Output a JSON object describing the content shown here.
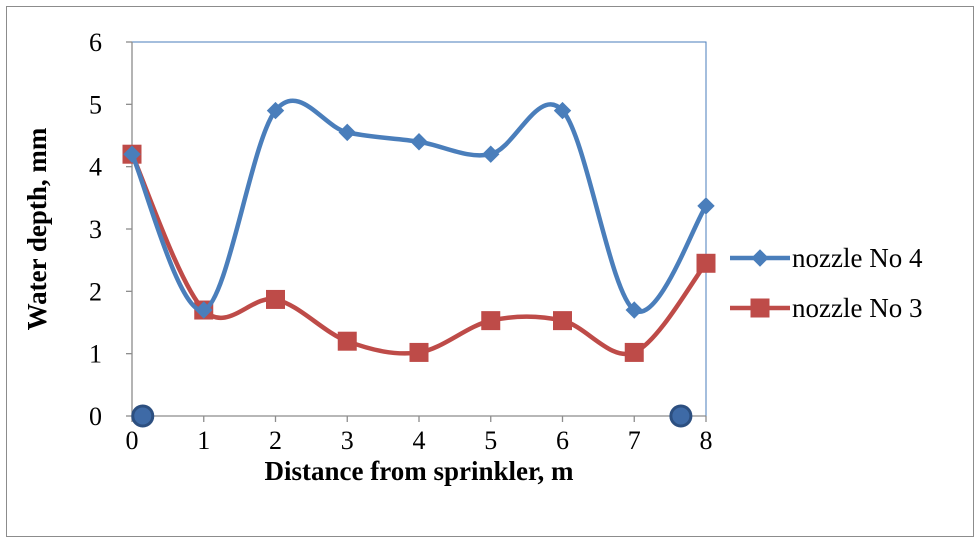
{
  "chart_data": {
    "type": "line",
    "title": "",
    "xlabel": "Distance from sprinkler, m",
    "ylabel": "Water depth, mm",
    "x": [
      0,
      1,
      2,
      3,
      4,
      5,
      6,
      7,
      8
    ],
    "xlim": [
      0,
      8
    ],
    "ylim": [
      0,
      6
    ],
    "x_ticks": [
      "0",
      "1",
      "2",
      "3",
      "4",
      "5",
      "6",
      "7",
      "8"
    ],
    "y_ticks": [
      "0",
      "1",
      "2",
      "3",
      "4",
      "5",
      "6"
    ],
    "smooth": true,
    "grid": false,
    "legend_position": "right",
    "series": [
      {
        "name": "nozzle No 4",
        "marker": "diamond",
        "color": "#4a7ebb",
        "values": [
          4.2,
          1.7,
          4.9,
          4.55,
          4.4,
          4.2,
          4.9,
          1.7,
          3.37
        ]
      },
      {
        "name": "nozzle No 3",
        "marker": "square",
        "color": "#be4b48",
        "values": [
          4.2,
          1.7,
          1.87,
          1.2,
          1.02,
          1.53,
          1.53,
          1.02,
          2.45
        ]
      }
    ],
    "annotations": [
      {
        "type": "circle-marker",
        "x": 0.15,
        "y": 0,
        "color": "#3e6aa6"
      },
      {
        "type": "circle-marker",
        "x": 7.65,
        "y": 0,
        "color": "#3e6aa6"
      }
    ]
  }
}
